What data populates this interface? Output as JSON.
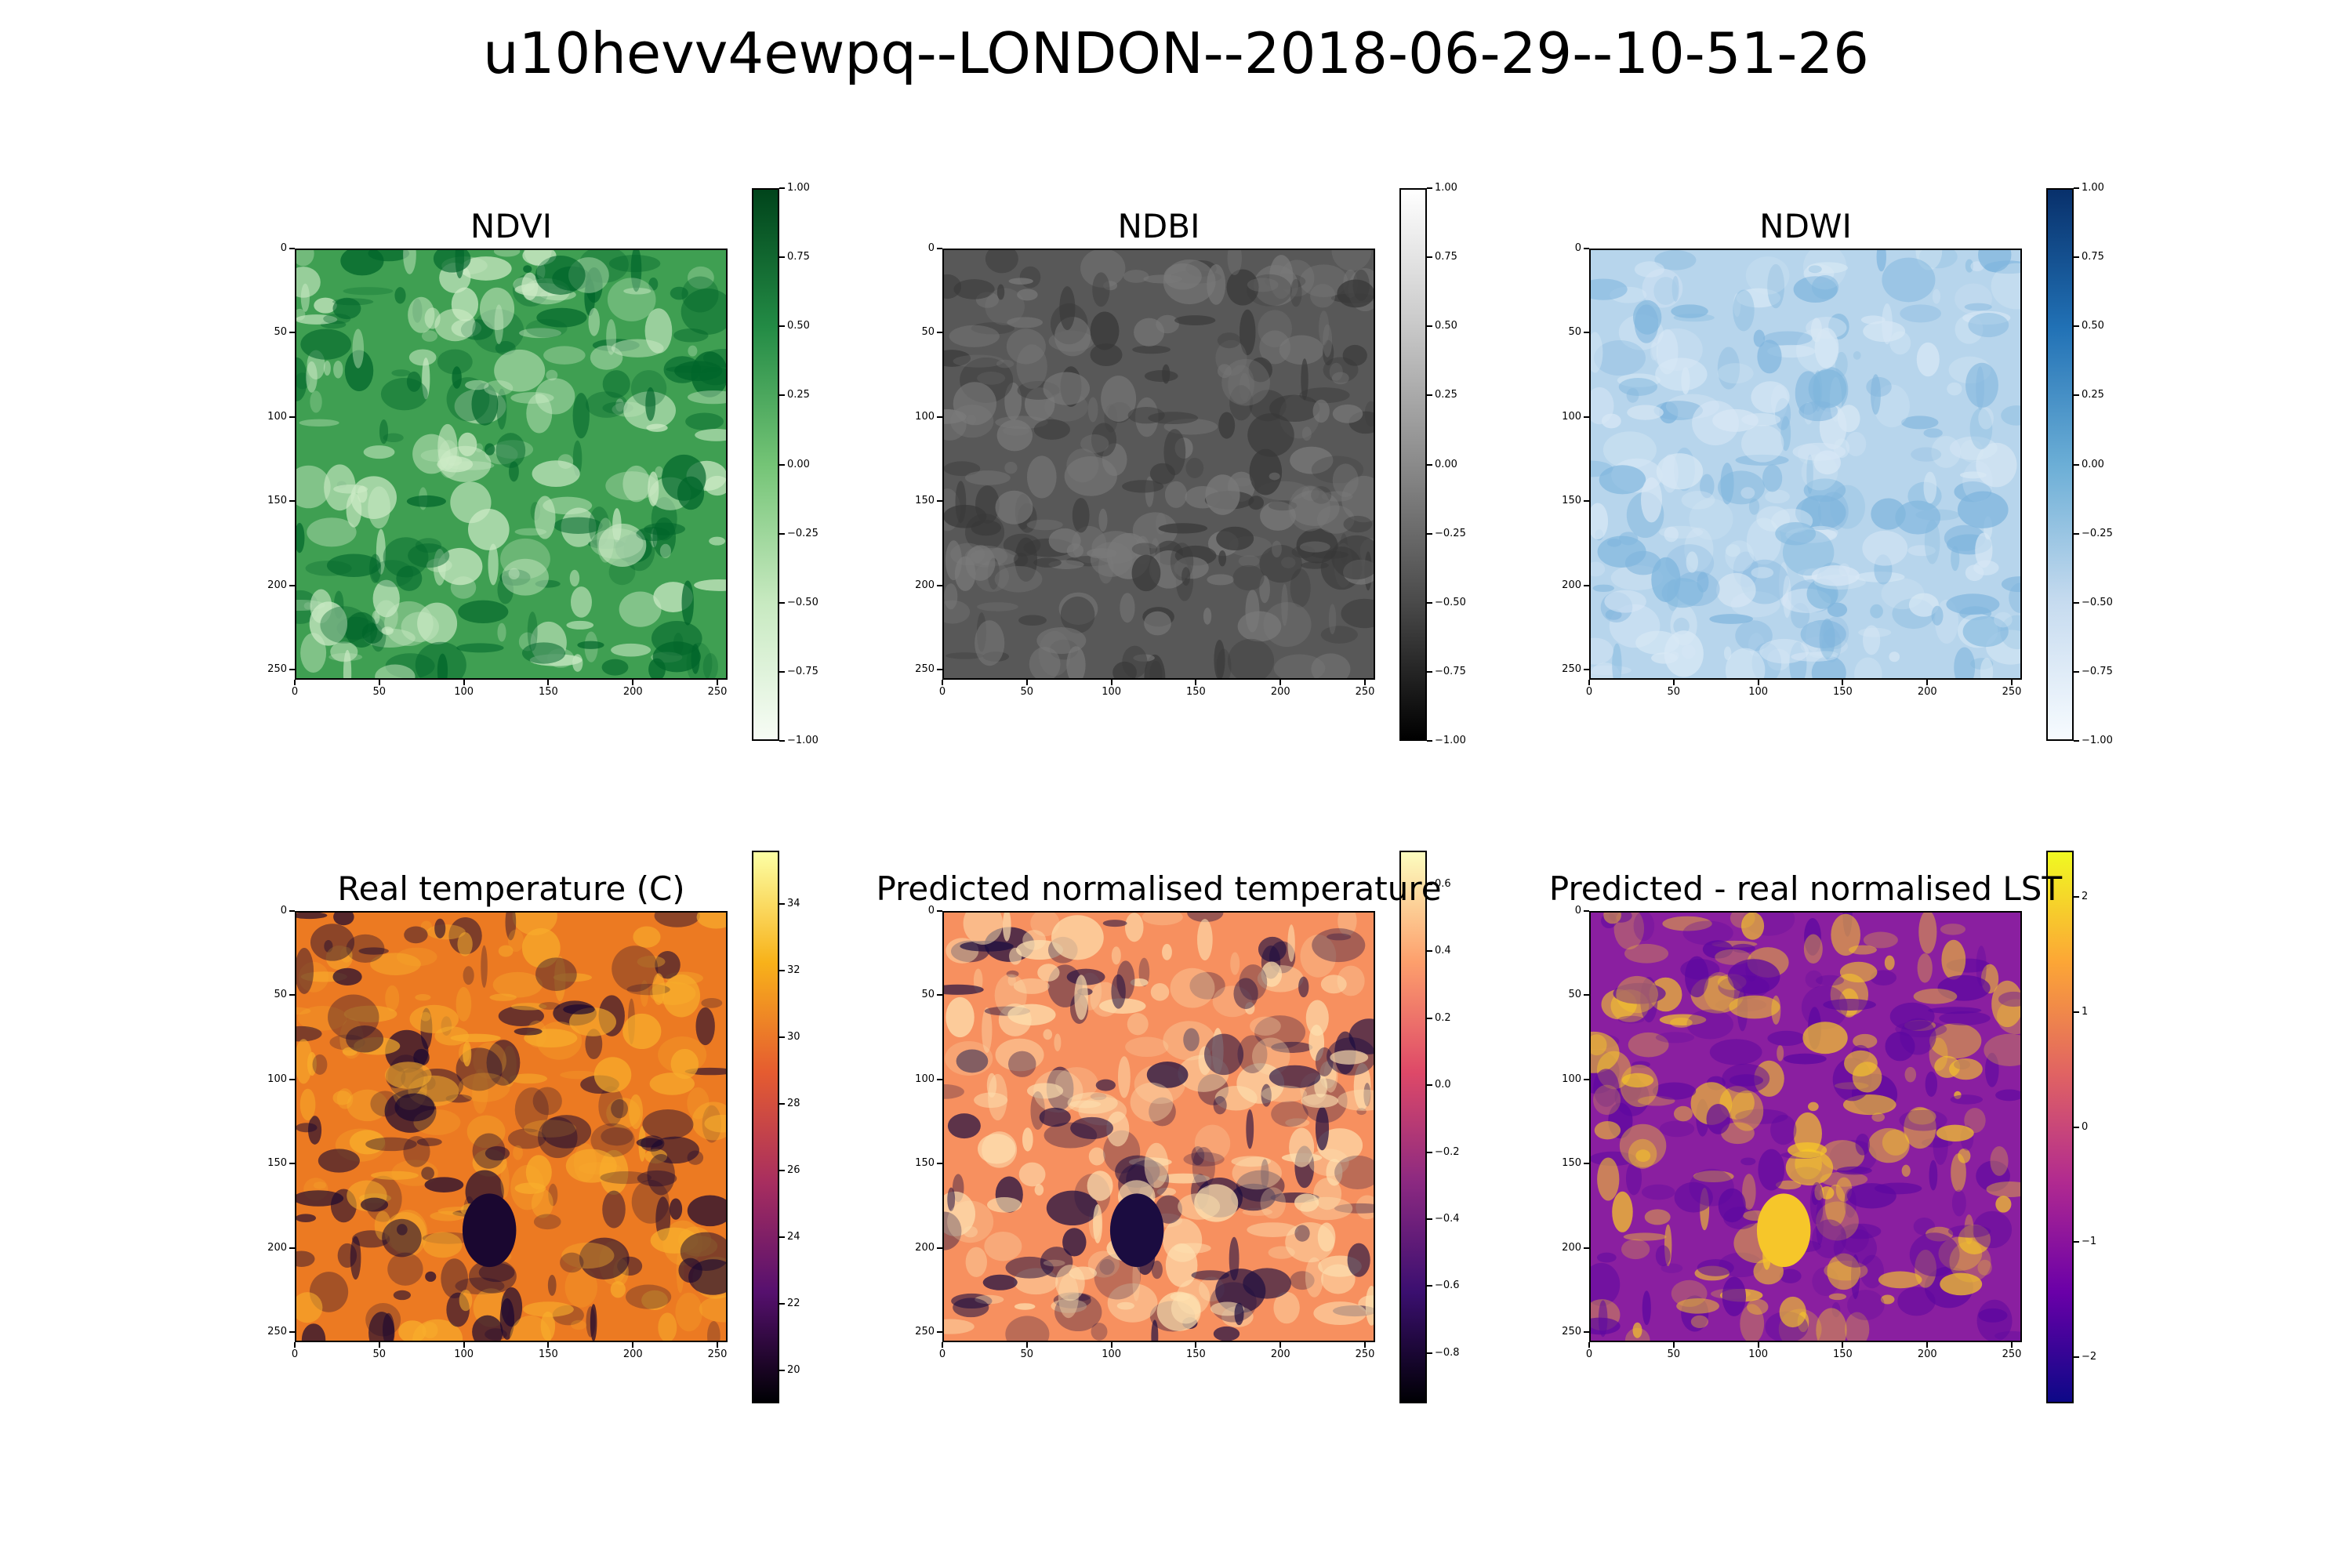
{
  "figure_title": "u10hevv4ewpq--LONDON--2018-06-29--10-51-26",
  "chart_data": [
    {
      "type": "heatmap",
      "title": "NDVI",
      "colormap": "Greens",
      "x_ticks": [
        "0",
        "50",
        "100",
        "150",
        "200",
        "250"
      ],
      "y_ticks": [
        "0",
        "50",
        "100",
        "150",
        "200",
        "250"
      ],
      "xlim": [
        0,
        255
      ],
      "ylim": [
        255,
        0
      ],
      "colorbar": {
        "range": [
          -1.0,
          1.0
        ],
        "ticks": [
          "1.00",
          "0.75",
          "0.50",
          "0.25",
          "0.00",
          "−0.25",
          "−0.50",
          "−0.75",
          "−1.00"
        ],
        "colors": [
          "#00441b",
          "#238b45",
          "#74c476",
          "#c7e9c0",
          "#f7fcf5"
        ]
      },
      "texture": {
        "base": "#3f9f52",
        "light": "#cdebc6",
        "dark": "#00652a"
      }
    },
    {
      "type": "heatmap",
      "title": "NDBI",
      "colormap": "Greys",
      "x_ticks": [
        "0",
        "50",
        "100",
        "150",
        "200",
        "250"
      ],
      "y_ticks": [
        "0",
        "50",
        "100",
        "150",
        "200",
        "250"
      ],
      "xlim": [
        0,
        255
      ],
      "ylim": [
        255,
        0
      ],
      "colorbar": {
        "range": [
          -1.0,
          1.0
        ],
        "ticks": [
          "1.00",
          "0.75",
          "0.50",
          "0.25",
          "0.00",
          "−0.25",
          "−0.50",
          "−0.75",
          "−1.00"
        ],
        "colors": [
          "#ffffff",
          "#c8c8c8",
          "#8a8a8a",
          "#4a4a4a",
          "#000000"
        ]
      },
      "texture": {
        "base": "#585858",
        "light": "#7a7a7a",
        "dark": "#383838"
      }
    },
    {
      "type": "heatmap",
      "title": "NDWI",
      "colormap": "Blues",
      "x_ticks": [
        "0",
        "50",
        "100",
        "150",
        "200",
        "250"
      ],
      "y_ticks": [
        "0",
        "50",
        "100",
        "150",
        "200",
        "250"
      ],
      "xlim": [
        0,
        255
      ],
      "ylim": [
        255,
        0
      ],
      "colorbar": {
        "range": [
          -1.0,
          1.0
        ],
        "ticks": [
          "1.00",
          "0.75",
          "0.50",
          "0.25",
          "0.00",
          "−0.25",
          "−0.50",
          "−0.75",
          "−1.00"
        ],
        "colors": [
          "#08306b",
          "#2171b5",
          "#6baed6",
          "#c6dbef",
          "#f7fbff"
        ]
      },
      "texture": {
        "base": "#b7d5ec",
        "light": "#d8e8f5",
        "dark": "#7fb5dd"
      }
    },
    {
      "type": "heatmap",
      "title": "Real temperature (C)",
      "colormap": "inferno",
      "x_ticks": [
        "0",
        "50",
        "100",
        "150",
        "200",
        "250"
      ],
      "y_ticks": [
        "0",
        "50",
        "100",
        "150",
        "200",
        "250"
      ],
      "xlim": [
        0,
        255
      ],
      "ylim": [
        255,
        0
      ],
      "colorbar": {
        "range": [
          19.0,
          35.6
        ],
        "ticks": [
          "34",
          "32",
          "30",
          "28",
          "26",
          "24",
          "22",
          "20"
        ],
        "tick_values": [
          34,
          32,
          30,
          28,
          26,
          24,
          22,
          20
        ],
        "colors": [
          "#fcffa4",
          "#f8b21a",
          "#e55c30",
          "#a82e5f",
          "#56106e",
          "#000004"
        ]
      },
      "texture": {
        "base": "#ec7a22",
        "light": "#f8ae2c",
        "dark": "#1a0730"
      }
    },
    {
      "type": "heatmap",
      "title": "Predicted normalised temperature",
      "colormap": "magma",
      "x_ticks": [
        "0",
        "50",
        "100",
        "150",
        "200",
        "250"
      ],
      "y_ticks": [
        "0",
        "50",
        "100",
        "150",
        "200",
        "250"
      ],
      "xlim": [
        0,
        255
      ],
      "ylim": [
        255,
        0
      ],
      "colorbar": {
        "range": [
          -0.95,
          0.7
        ],
        "ticks": [
          "0.6",
          "0.4",
          "0.2",
          "0.0",
          "−0.2",
          "−0.4",
          "−0.6",
          "−0.8"
        ],
        "tick_values": [
          0.6,
          0.4,
          0.2,
          0.0,
          -0.2,
          -0.4,
          -0.6,
          -0.8
        ],
        "colors": [
          "#fcfdbf",
          "#fd9f6c",
          "#de4968",
          "#8c2981",
          "#3b0f70",
          "#000004"
        ]
      },
      "texture": {
        "base": "#f7905f",
        "light": "#fde0b0",
        "dark": "#1b0c40"
      }
    },
    {
      "type": "heatmap",
      "title": "Predicted - real normalised LST",
      "colormap": "plasma",
      "x_ticks": [
        "0",
        "50",
        "100",
        "150",
        "200",
        "250"
      ],
      "y_ticks": [
        "0",
        "50",
        "100",
        "150",
        "200",
        "250"
      ],
      "xlim": [
        0,
        255
      ],
      "ylim": [
        255,
        0
      ],
      "colorbar": {
        "range": [
          -2.4,
          2.4
        ],
        "ticks": [
          "2",
          "1",
          "0",
          "−1",
          "−2"
        ],
        "tick_values": [
          2,
          1,
          0,
          -1,
          -2
        ],
        "colors": [
          "#f0f921",
          "#fca636",
          "#e16462",
          "#b12a90",
          "#6a00a8",
          "#0d0887"
        ]
      },
      "texture": {
        "base": "#8a1fa0",
        "light": "#f6c62a",
        "dark": "#5c07a0"
      }
    }
  ]
}
